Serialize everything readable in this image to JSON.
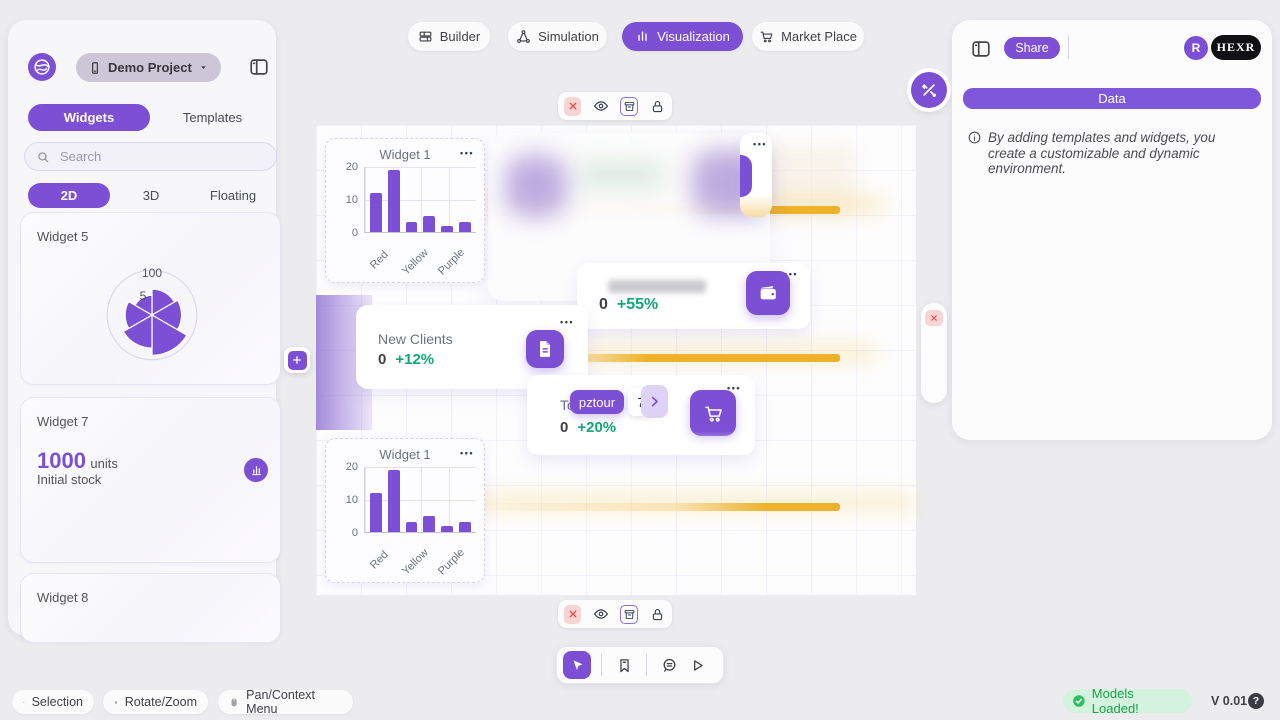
{
  "ui": {
    "ellipsis": "•••"
  },
  "header": {
    "project": {
      "name": "Demo Project"
    },
    "nav_tabs": [
      {
        "label": "Builder"
      },
      {
        "label": "Simulation"
      },
      {
        "label": "Visualization"
      },
      {
        "label": "Market Place"
      }
    ],
    "active_tab": "Visualization"
  },
  "sidebar": {
    "tabs": {
      "widgets": "Widgets",
      "templates": "Templates",
      "active": "Widgets"
    },
    "search_placeholder": "Search",
    "modes": {
      "m2d": "2D",
      "m3d": "3D",
      "floating": "Floating",
      "active": "2D"
    },
    "widget5": {
      "title": "Widget 5"
    },
    "widget7": {
      "title": "Widget 7",
      "value": "1000",
      "unit": "units",
      "caption": "Initial stock"
    },
    "widget8": {
      "title": "Widget 8"
    }
  },
  "canvas": {
    "widget1_title": "Widget 1",
    "new_clients": {
      "label": "New Clients",
      "value": "0",
      "delta": "+12%"
    },
    "wallet_card": {
      "value": "0",
      "delta": "+55%"
    },
    "total_card": {
      "label": "Total",
      "value": "0",
      "delta": "+20%"
    },
    "tour": {
      "badge": "pztour",
      "step": "7"
    }
  },
  "right_panel": {
    "share_label": "Share",
    "avatar_initial": "R",
    "brand": "HEXR",
    "data_header": "Data",
    "info_text": "By adding templates and widgets, you create a customizable and dynamic environment."
  },
  "footer": {
    "hints": [
      {
        "label": "Selection"
      },
      {
        "label": "Rotate/Zoom"
      },
      {
        "label": "Pan/Context Menu"
      }
    ],
    "status": "Models Loaded!",
    "version": "V 0.01"
  },
  "colors": {
    "accent": "#7c4fd4",
    "green": "#10a878",
    "yellow": "#f1b32b",
    "red": "#e5484d",
    "badge_black": "#111114"
  },
  "chart_data": [
    {
      "id": "widget1-bars",
      "type": "bar",
      "title": "Widget 1",
      "categories": [
        "Red",
        "Yellow",
        "Purple"
      ],
      "values": [
        12,
        19,
        3,
        5,
        2,
        3
      ],
      "max": 20,
      "ylim": [
        0,
        20
      ],
      "ytick_labels": [
        "20",
        "10",
        "0"
      ],
      "bar_color": "#7c4fd4",
      "note": "six bars, category labels shown under alternating bars rotated 45deg"
    },
    {
      "id": "widget5-rose",
      "type": "polar-area",
      "title": "Widget 5",
      "values": [
        58,
        66,
        90,
        74,
        60,
        44
      ],
      "max": 100,
      "tick_labels": [
        "100",
        "5"
      ],
      "color": "#7c4fd4"
    }
  ]
}
